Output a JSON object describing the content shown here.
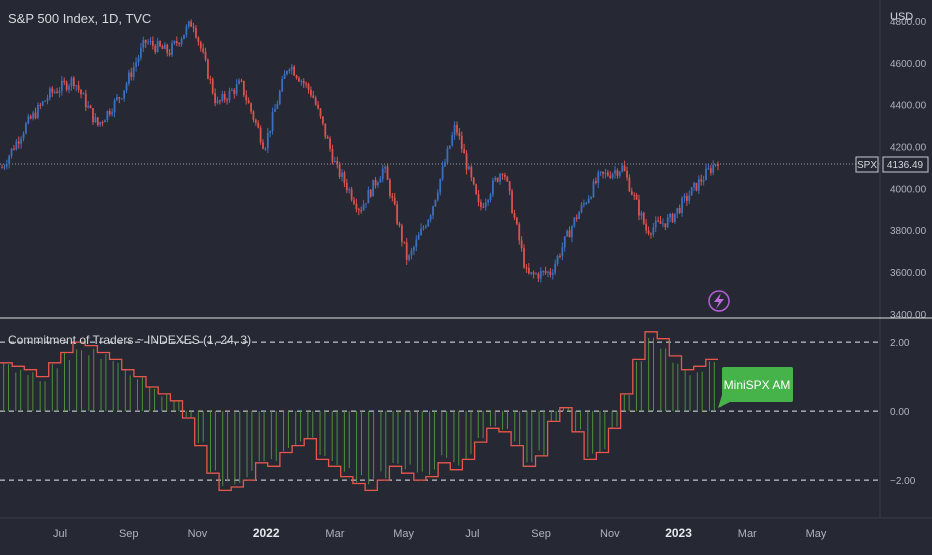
{
  "header": {
    "title": "S&P 500 Index, 1D, TVC"
  },
  "indicator": {
    "title": "Commitment of Traders ~ INDEXES (1, 24, 3)",
    "signal_label": "MiniSPX AM"
  },
  "colors": {
    "background": "#262833",
    "up": "#3d6fbf",
    "down": "#d9534f",
    "cot_line": "#e8574b",
    "cot_hist": "#4f8f3f",
    "label_green": "#45b24a",
    "axis_text": "#b0b3bd",
    "divider": "#e0e0e0"
  },
  "chart_data": [
    {
      "type": "candlestick",
      "title": "S&P 500 Index, 1D, TVC",
      "currency": "USD",
      "current_price": "4136.49",
      "symbol": "SPX",
      "ylim": [
        3380,
        4900
      ],
      "y_ticks": [
        "4800.00",
        "4600.00",
        "4400.00",
        "4200.00",
        "4000.00",
        "3800.00",
        "3600.00",
        "3400.00"
      ],
      "x_ticks": [
        "Jul",
        "Sep",
        "Nov",
        "2022",
        "Mar",
        "May",
        "Jul",
        "Sep",
        "Nov",
        "2023",
        "Mar",
        "May"
      ],
      "x_tick_bold": [
        "2022",
        "2023"
      ],
      "price_path": [
        [
          "Jun",
          4100
        ],
        [
          "Jul",
          4300
        ],
        [
          "Aug",
          4450
        ],
        [
          "Sep",
          4520
        ],
        [
          "Sep",
          4300
        ],
        [
          "Oct",
          4450
        ],
        [
          "Nov",
          4700
        ],
        [
          "Dec",
          4650
        ],
        [
          "2022",
          4800
        ],
        [
          "Jan",
          4400
        ],
        [
          "Feb",
          4500
        ],
        [
          "Mar",
          4200
        ],
        [
          "Mar",
          4600
        ],
        [
          "Apr",
          4450
        ],
        [
          "May",
          4100
        ],
        [
          "May",
          3900
        ],
        [
          "Jun",
          4100
        ],
        [
          "Jun",
          3650
        ],
        [
          "Jul",
          3900
        ],
        [
          "Aug",
          4300
        ],
        [
          "Sep",
          3900
        ],
        [
          "Sep",
          4100
        ],
        [
          "Oct",
          3580
        ],
        [
          "Oct",
          3600
        ],
        [
          "Nov",
          3850
        ],
        [
          "Nov",
          4050
        ],
        [
          "Dec",
          4100
        ],
        [
          "Dec",
          3800
        ],
        [
          "2023",
          3850
        ],
        [
          "Jan",
          4000
        ],
        [
          "Feb",
          4136
        ]
      ]
    },
    {
      "type": "line",
      "title": "Commitment of Traders ~ INDEXES (1, 24, 3)",
      "ylim": [
        -3.1,
        2.7
      ],
      "y_ticks": [
        "2.00",
        "0.00",
        "−2.00"
      ],
      "reference_lines": [
        2,
        0,
        -2
      ],
      "series": [
        {
          "style": "step-line",
          "values": [
            1.4,
            1.3,
            1.2,
            1.0,
            1.4,
            1.7,
            2.0,
            1.9,
            1.7,
            1.5,
            1.2,
            1.0,
            0.7,
            0.5,
            0.3,
            -0.2,
            -1.0,
            -1.8,
            -2.3,
            -2.2,
            -2.0,
            -1.5,
            -1.6,
            -1.2,
            -1.0,
            -0.8,
            -1.4,
            -1.6,
            -1.9,
            -2.1,
            -2.3,
            -2.0,
            -1.6,
            -1.8,
            -2.0,
            -1.9,
            -1.5,
            -1.7,
            -1.4,
            -0.9,
            -0.5,
            -0.6,
            -1.0,
            -1.6,
            -1.3,
            -0.3,
            0.1,
            -0.6,
            -1.4,
            -1.2,
            -0.5,
            0.5,
            1.5,
            2.3,
            2.1,
            1.6,
            1.2,
            1.3,
            1.5
          ]
        },
        {
          "style": "histogram",
          "values": [
            1.4,
            1.3,
            1.2,
            1.0,
            1.4,
            1.7,
            2.0,
            1.9,
            1.7,
            1.5,
            1.2,
            1.0,
            0.7,
            0.5,
            0.3,
            -0.2,
            -1.0,
            -1.8,
            -2.3,
            -2.2,
            -2.0,
            -1.5,
            -1.6,
            -1.2,
            -1.0,
            -0.8,
            -1.4,
            -1.6,
            -1.9,
            -2.1,
            -2.3,
            -2.0,
            -1.6,
            -1.8,
            -2.0,
            -1.9,
            -1.5,
            -1.7,
            -1.4,
            -0.9,
            -0.5,
            -0.6,
            -1.0,
            -1.6,
            -1.3,
            -0.3,
            0.1,
            -0.6,
            -1.4,
            -1.2,
            -0.5,
            0.5,
            1.5,
            2.3,
            2.1,
            1.6,
            1.2,
            1.3,
            1.5
          ]
        }
      ]
    }
  ]
}
